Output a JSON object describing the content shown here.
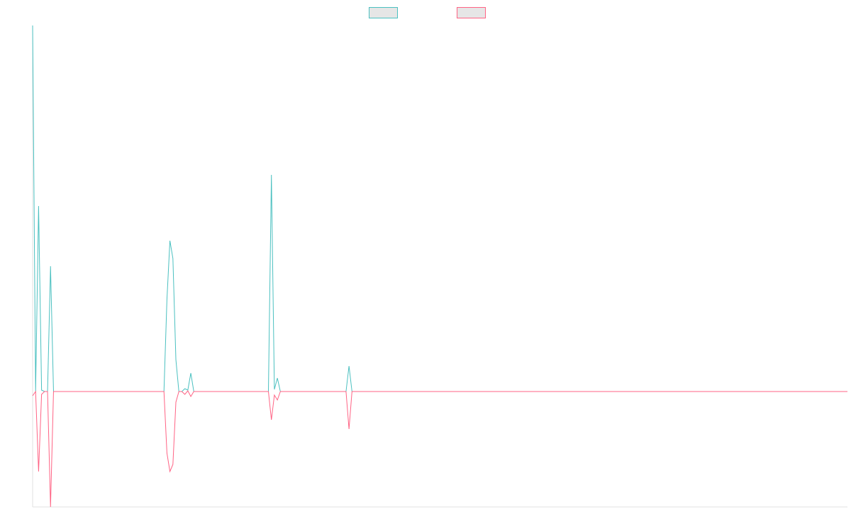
{
  "chart_data": {
    "type": "line",
    "x": [
      0,
      1,
      2,
      3,
      4,
      5,
      6,
      7,
      44,
      45,
      46,
      47,
      48,
      49,
      50,
      51,
      52,
      53,
      54,
      79,
      80,
      81,
      82,
      83,
      105,
      106,
      107,
      273
    ],
    "xlim": [
      0,
      273
    ],
    "ylim": [
      -16.3,
      51.7
    ],
    "series": [
      {
        "color": "#4bc0c0",
        "values": [
          51.7,
          0,
          26.2,
          0.2,
          0,
          0,
          17.7,
          0,
          0,
          13.0,
          21.3,
          18.8,
          4.5,
          0,
          0,
          0.4,
          0.2,
          2.6,
          0,
          0,
          30.6,
          0.3,
          1.9,
          0,
          0,
          3.6,
          0,
          0
        ]
      },
      {
        "color": "#ff6384",
        "values": [
          -0.6,
          0,
          -11.3,
          -0.4,
          0,
          0,
          -16.3,
          0,
          0,
          -8.7,
          -11.3,
          -10.3,
          -1.5,
          0,
          0,
          -0.4,
          0.1,
          -0.7,
          0,
          0,
          -4.0,
          -0.5,
          -1.2,
          0,
          0,
          -5.3,
          0,
          0
        ]
      }
    ]
  }
}
